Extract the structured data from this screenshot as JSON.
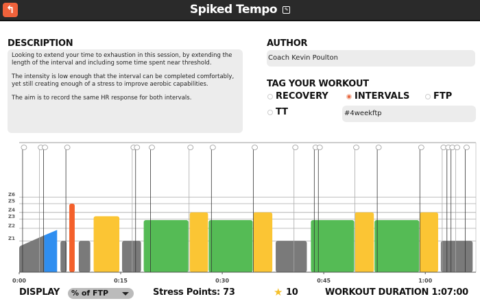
{
  "header": {
    "title": "Spiked Tempo",
    "back_icon": "back-arrow-icon",
    "edit_icon": "edit-icon"
  },
  "description": {
    "heading": "DESCRIPTION",
    "paragraphs": [
      "Looking to extend your time to exhaustion in this session, by extending the length of the interval and including some time spent near threshold.",
      "The intensity is low enough that the interval can be completed comfortably, yet still creating enough of a stress to improve aerobic capabilities.",
      "The aim is to record the same HR response for both intervals."
    ]
  },
  "author": {
    "heading": "AUTHOR",
    "value": "Coach Kevin Poulton"
  },
  "tags": {
    "heading": "TAG YOUR WORKOUT",
    "options": [
      {
        "label": "RECOVERY",
        "selected": false
      },
      {
        "label": "INTERVALS",
        "selected": true
      },
      {
        "label": "FTP",
        "selected": false
      },
      {
        "label": "TT",
        "selected": false
      }
    ],
    "hashtag": "#4weekftp"
  },
  "chart_data": {
    "type": "bar",
    "x_unit": "minutes",
    "xlim": [
      0,
      67.5
    ],
    "x_ticks": [
      {
        "label": "0:00",
        "value": 0
      },
      {
        "label": "0:15",
        "value": 15
      },
      {
        "label": "0:30",
        "value": 30
      },
      {
        "label": "0:45",
        "value": 45
      },
      {
        "label": "1:00",
        "value": 60
      }
    ],
    "ylim": [
      0,
      160
    ],
    "zones": [
      {
        "label": "Z1",
        "value": 57
      },
      {
        "label": "Z2",
        "value": 80
      },
      {
        "label": "Z3",
        "value": 97
      },
      {
        "label": "Z4",
        "value": 109
      },
      {
        "label": "Z5",
        "value": 125
      },
      {
        "label": "Z6",
        "value": 137
      }
    ],
    "ramp": {
      "start": 0,
      "end": 5.6,
      "from": 48,
      "to": 77,
      "split": 3.7,
      "colors": [
        "#7a7a7a",
        "#2f8ef0"
      ]
    },
    "blocks": [
      {
        "start": 6.1,
        "end": 7.0,
        "power": 57,
        "color": "#7a7a7a"
      },
      {
        "start": 7.4,
        "end": 8.2,
        "power": 125,
        "color": "#f4602b"
      },
      {
        "start": 8.8,
        "end": 10.5,
        "power": 57,
        "color": "#7a7a7a"
      },
      {
        "start": 11.0,
        "end": 14.8,
        "power": 102,
        "color": "#fbc534"
      },
      {
        "start": 15.2,
        "end": 18.0,
        "power": 57,
        "color": "#7a7a7a"
      },
      {
        "start": 18.4,
        "end": 25.0,
        "power": 95,
        "color": "#55bb55"
      },
      {
        "start": 25.2,
        "end": 27.9,
        "power": 109,
        "color": "#fbc534"
      },
      {
        "start": 28.0,
        "end": 34.5,
        "power": 95,
        "color": "#55bb55"
      },
      {
        "start": 34.6,
        "end": 37.4,
        "power": 109,
        "color": "#fbc534"
      },
      {
        "start": 37.9,
        "end": 42.5,
        "power": 57,
        "color": "#7a7a7a"
      },
      {
        "start": 43.1,
        "end": 49.5,
        "power": 95,
        "color": "#55bb55"
      },
      {
        "start": 49.6,
        "end": 52.4,
        "power": 109,
        "color": "#fbc534"
      },
      {
        "start": 52.5,
        "end": 59.1,
        "power": 95,
        "color": "#55bb55"
      },
      {
        "start": 59.2,
        "end": 61.9,
        "power": 109,
        "color": "#fbc534"
      },
      {
        "start": 62.3,
        "end": 67.0,
        "power": 57,
        "color": "#7a7a7a"
      }
    ],
    "text_events": [
      0.5,
      3.0,
      3.6,
      6.9,
      16.7,
      17.2,
      19.4,
      25.1,
      28.4,
      34.6,
      40.6,
      43.6,
      44.2,
      49.6,
      52.9,
      59.2,
      62.5,
      63.2,
      63.8,
      64.5,
      65.9
    ]
  },
  "footer": {
    "display_label": "DISPLAY",
    "display_value": "% of FTP",
    "stress_points": "Stress Points: 73",
    "star_icon": "star-icon",
    "stars": "10",
    "duration": "WORKOUT DURATION 1:07:00"
  }
}
